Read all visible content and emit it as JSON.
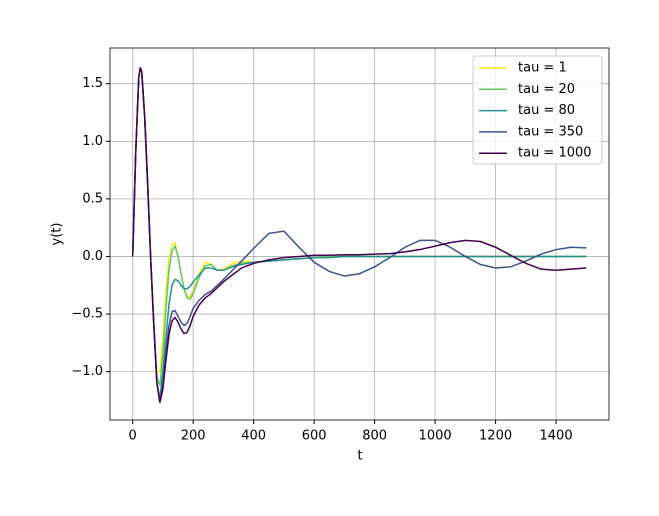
{
  "chart_data": {
    "type": "line",
    "xlabel": "t",
    "ylabel": "y(t)",
    "x": [
      0,
      10,
      20,
      25,
      30,
      40,
      50,
      60,
      70,
      80,
      90,
      100,
      110,
      120,
      130,
      140,
      150,
      160,
      170,
      180,
      190,
      200,
      220,
      240,
      260,
      280,
      300,
      330,
      360,
      400,
      450,
      500,
      550,
      600,
      650,
      700,
      750,
      800,
      850,
      900,
      950,
      1000,
      1050,
      1100,
      1150,
      1200,
      1250,
      1300,
      1350,
      1400,
      1450,
      1500
    ],
    "series": [
      {
        "name": "tau = 1",
        "color": "#fde725",
        "values": [
          0,
          0.9,
          1.55,
          1.64,
          1.6,
          1.2,
          0.6,
          -0.05,
          -0.6,
          -1.0,
          -1.0,
          -0.7,
          -0.3,
          -0.02,
          0.1,
          0.12,
          0.0,
          -0.15,
          -0.28,
          -0.35,
          -0.35,
          -0.3,
          -0.15,
          -0.05,
          -0.07,
          -0.12,
          -0.11,
          -0.06,
          -0.04,
          -0.05,
          -0.04,
          -0.03,
          -0.02,
          -0.01,
          0,
          0,
          0,
          0,
          0,
          0,
          0,
          0,
          0,
          0,
          0,
          0,
          0,
          0,
          0,
          0,
          0,
          0
        ]
      },
      {
        "name": "tau = 20",
        "color": "#5ec962",
        "values": [
          0,
          0.9,
          1.55,
          1.64,
          1.6,
          1.2,
          0.6,
          -0.05,
          -0.6,
          -1.05,
          -1.12,
          -0.85,
          -0.45,
          -0.12,
          0.05,
          0.09,
          0.0,
          -0.15,
          -0.28,
          -0.36,
          -0.37,
          -0.32,
          -0.18,
          -0.08,
          -0.07,
          -0.12,
          -0.12,
          -0.08,
          -0.06,
          -0.05,
          -0.04,
          -0.03,
          -0.02,
          -0.01,
          0,
          0,
          0,
          0,
          0,
          0,
          0,
          0,
          0,
          0,
          0,
          0,
          0,
          0,
          0,
          0,
          0,
          0
        ]
      },
      {
        "name": "tau = 80",
        "color": "#21918c",
        "values": [
          0,
          0.9,
          1.55,
          1.64,
          1.6,
          1.2,
          0.6,
          -0.05,
          -0.6,
          -1.1,
          -1.23,
          -1.0,
          -0.7,
          -0.42,
          -0.25,
          -0.2,
          -0.21,
          -0.25,
          -0.28,
          -0.28,
          -0.26,
          -0.22,
          -0.16,
          -0.1,
          -0.1,
          -0.12,
          -0.12,
          -0.09,
          -0.07,
          -0.05,
          -0.04,
          -0.03,
          -0.02,
          -0.01,
          -0.01,
          0,
          0,
          0,
          0,
          0,
          0,
          0,
          0,
          0,
          0,
          0,
          0,
          0,
          0,
          0,
          0,
          0
        ]
      },
      {
        "name": "tau = 350",
        "color": "#3b528b",
        "values": [
          0,
          0.9,
          1.55,
          1.64,
          1.6,
          1.2,
          0.6,
          -0.05,
          -0.6,
          -1.1,
          -1.26,
          -1.1,
          -0.82,
          -0.6,
          -0.48,
          -0.47,
          -0.52,
          -0.57,
          -0.6,
          -0.58,
          -0.52,
          -0.45,
          -0.38,
          -0.33,
          -0.3,
          -0.25,
          -0.2,
          -0.12,
          -0.04,
          0.07,
          0.2,
          0.22,
          0.08,
          -0.05,
          -0.13,
          -0.17,
          -0.15,
          -0.09,
          -0.01,
          0.08,
          0.14,
          0.14,
          0.08,
          0.0,
          -0.07,
          -0.1,
          -0.09,
          -0.04,
          0.02,
          0.06,
          0.08,
          0.075
        ]
      },
      {
        "name": "tau = 1000",
        "color": "#440154",
        "values": [
          0,
          0.9,
          1.55,
          1.64,
          1.6,
          1.2,
          0.6,
          -0.05,
          -0.6,
          -1.1,
          -1.27,
          -1.15,
          -0.9,
          -0.68,
          -0.56,
          -0.53,
          -0.57,
          -0.63,
          -0.67,
          -0.66,
          -0.6,
          -0.52,
          -0.42,
          -0.36,
          -0.32,
          -0.27,
          -0.22,
          -0.16,
          -0.1,
          -0.06,
          -0.03,
          -0.01,
          0.0,
          0.01,
          0.01,
          0.015,
          0.015,
          0.02,
          0.025,
          0.04,
          0.06,
          0.09,
          0.12,
          0.14,
          0.13,
          0.08,
          0.01,
          -0.06,
          -0.11,
          -0.12,
          -0.11,
          -0.1
        ]
      }
    ],
    "xlim": [
      -75,
      1575
    ],
    "xticks": [
      0,
      200,
      400,
      600,
      800,
      1000,
      1200,
      1400
    ],
    "ylim": [
      -1.42,
      1.81
    ],
    "yticks": [
      {
        "value": -1,
        "label": "−1.0"
      },
      {
        "value": -0.5,
        "label": "−0.5"
      },
      {
        "value": 0,
        "label": "0.0"
      },
      0.5,
      {
        "value": 1,
        "label": "1.0"
      },
      1.5
    ],
    "grid": true,
    "legend": "upper right"
  }
}
